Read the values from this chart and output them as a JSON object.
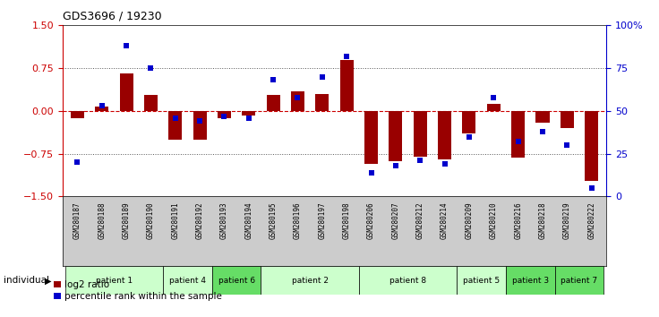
{
  "title": "GDS3696 / 19230",
  "samples": [
    "GSM280187",
    "GSM280188",
    "GSM280189",
    "GSM280190",
    "GSM280191",
    "GSM280192",
    "GSM280193",
    "GSM280194",
    "GSM280195",
    "GSM280196",
    "GSM280197",
    "GSM280198",
    "GSM280206",
    "GSM280207",
    "GSM280212",
    "GSM280214",
    "GSM280209",
    "GSM280210",
    "GSM280216",
    "GSM280218",
    "GSM280219",
    "GSM280222"
  ],
  "log2_ratio": [
    -0.12,
    0.08,
    0.65,
    0.28,
    -0.5,
    -0.5,
    -0.12,
    -0.08,
    0.28,
    0.35,
    0.3,
    0.9,
    -0.92,
    -0.88,
    -0.8,
    -0.85,
    -0.4,
    0.12,
    -0.82,
    -0.2,
    -0.3,
    -1.22
  ],
  "percentile": [
    20,
    53,
    88,
    75,
    46,
    44,
    47,
    46,
    68,
    58,
    70,
    82,
    14,
    18,
    21,
    19,
    35,
    58,
    32,
    38,
    30,
    5
  ],
  "patients": [
    {
      "label": "patient 1",
      "start": 0,
      "end": 4,
      "color": "#ccffcc"
    },
    {
      "label": "patient 4",
      "start": 4,
      "end": 6,
      "color": "#ccffcc"
    },
    {
      "label": "patient 6",
      "start": 6,
      "end": 8,
      "color": "#66dd66"
    },
    {
      "label": "patient 2",
      "start": 8,
      "end": 12,
      "color": "#ccffcc"
    },
    {
      "label": "patient 8",
      "start": 12,
      "end": 16,
      "color": "#ccffcc"
    },
    {
      "label": "patient 5",
      "start": 16,
      "end": 18,
      "color": "#ccffcc"
    },
    {
      "label": "patient 3",
      "start": 18,
      "end": 20,
      "color": "#66dd66"
    },
    {
      "label": "patient 7",
      "start": 20,
      "end": 22,
      "color": "#66dd66"
    }
  ],
  "bar_color": "#990000",
  "dot_color": "#0000cc",
  "zero_line_color": "#cc0000",
  "dotted_line_color": "#555555",
  "ylim": [
    -1.5,
    1.5
  ],
  "y2lim": [
    0,
    100
  ],
  "yticks": [
    -1.5,
    -0.75,
    0,
    0.75,
    1.5
  ],
  "y2ticks": [
    0,
    25,
    50,
    75,
    100
  ],
  "dotted_lines": [
    0.75,
    -0.75
  ],
  "background_color": "#ffffff",
  "label_bg_color": "#cccccc",
  "plot_bg_color": "#ffffff"
}
